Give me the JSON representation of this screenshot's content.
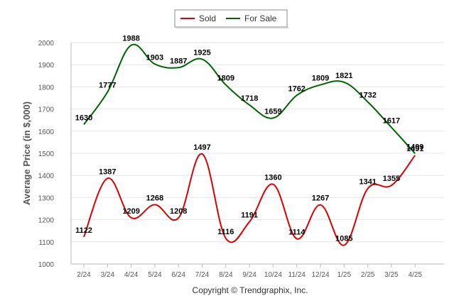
{
  "chart_data": {
    "type": "line",
    "ylabel": "Average Price (in $,000)",
    "ylim": [
      1000,
      2000
    ],
    "yticks": [
      1000,
      1100,
      1200,
      1300,
      1400,
      1500,
      1600,
      1700,
      1800,
      1900,
      2000
    ],
    "grid": true,
    "legend_position": "top-center",
    "categories": [
      "2/24",
      "3/24",
      "4/24",
      "5/24",
      "6/24",
      "7/24",
      "8/24",
      "9/24",
      "10/24",
      "11/24",
      "12/24",
      "1/25",
      "2/25",
      "3/25",
      "4/25"
    ],
    "series": [
      {
        "name": "Sold",
        "color": "#dd0000",
        "values": [
          1122,
          1387,
          1209,
          1268,
          1208,
          1497,
          1116,
          1191,
          1360,
          1114,
          1267,
          1085,
          1341,
          1355,
          1491
        ]
      },
      {
        "name": "For Sale",
        "color": "#006400",
        "values": [
          1630,
          1777,
          1988,
          1903,
          1887,
          1925,
          1809,
          1718,
          1659,
          1762,
          1809,
          1821,
          1732,
          1617,
          1499
        ]
      }
    ]
  },
  "footer": "Copyright © Trendgraphix, Inc."
}
